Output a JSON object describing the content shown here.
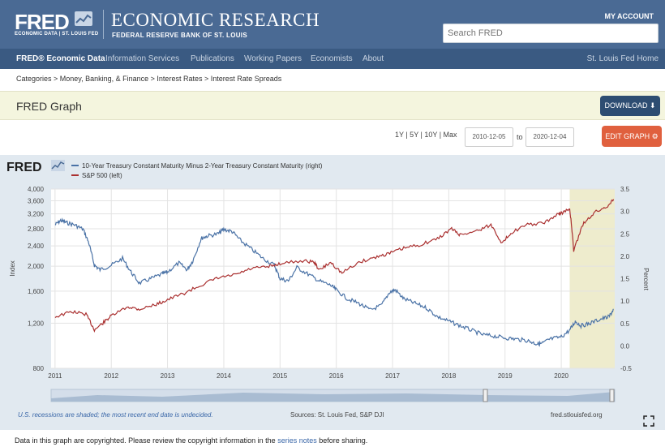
{
  "header": {
    "logo": "FRED",
    "logo_sub": "ECONOMIC DATA | ST. LOUIS FED",
    "title": "ECONOMIC RESEARCH",
    "subtitle": "FEDERAL RESERVE BANK OF ST. LOUIS",
    "my_account": "MY ACCOUNT",
    "search_placeholder": "Search FRED"
  },
  "nav": {
    "items": [
      "FRED® Economic Data",
      "Information Services",
      "Publications",
      "Working Papers",
      "Economists",
      "About"
    ],
    "right": "St. Louis Fed Home"
  },
  "breadcrumb": "Categories > Money, Banking, & Finance > Interest Rates > Interest Rate Spreads",
  "graph_bar": {
    "title": "FRED Graph",
    "download": "DOWNLOAD"
  },
  "controls": {
    "ranges": "1Y | 5Y | 10Y | Max",
    "start": "2010-12-05",
    "to": "to",
    "end": "2020-12-04",
    "edit": "EDIT GRAPH"
  },
  "chart_logo": "FRED",
  "footer": {
    "note": "U.S. recessions are shaded; the most recent end date is undecided.",
    "sources": "Sources: St. Louis Fed, S&P DJI",
    "url": "fred.stlouisfed.org"
  },
  "copyright": {
    "before": "Data in this graph are copyrighted. Please review the copyright information in the",
    "link": "series notes",
    "after": "before sharing."
  },
  "colors": {
    "spread": "#4a72a6",
    "sp500": "#aa3030",
    "recession": "#eeeccd"
  },
  "chart_data": {
    "type": "line",
    "series": [
      {
        "name": "10-Year Treasury Constant Maturity Minus 2-Year Treasury Constant Maturity (right)",
        "axis": "right",
        "x": [
          2011.0,
          2011.1,
          2011.2,
          2011.35,
          2011.5,
          2011.6,
          2011.7,
          2011.8,
          2012.0,
          2012.2,
          2012.35,
          2012.5,
          2012.7,
          2012.9,
          2013.0,
          2013.2,
          2013.35,
          2013.45,
          2013.6,
          2013.7,
          2013.9,
          2014.0,
          2014.15,
          2014.3,
          2014.5,
          2014.7,
          2014.9,
          2015.0,
          2015.15,
          2015.3,
          2015.5,
          2015.7,
          2015.9,
          2016.0,
          2016.2,
          2016.4,
          2016.6,
          2016.8,
          2016.95,
          2017.05,
          2017.2,
          2017.4,
          2017.6,
          2017.8,
          2018.0,
          2018.2,
          2018.4,
          2018.6,
          2018.8,
          2019.0,
          2019.2,
          2019.4,
          2019.55,
          2019.65,
          2019.8,
          2020.0,
          2020.15,
          2020.25,
          2020.35,
          2020.5,
          2020.7,
          2020.85,
          2020.93
        ],
        "values": [
          2.7,
          2.8,
          2.75,
          2.7,
          2.6,
          2.3,
          1.8,
          1.7,
          1.8,
          1.95,
          1.65,
          1.4,
          1.5,
          1.6,
          1.65,
          1.85,
          1.7,
          1.9,
          2.4,
          2.45,
          2.5,
          2.6,
          2.55,
          2.35,
          2.15,
          1.95,
          1.8,
          1.5,
          1.45,
          1.75,
          1.6,
          1.45,
          1.35,
          1.25,
          1.05,
          0.95,
          0.8,
          0.9,
          1.2,
          1.25,
          1.05,
          0.95,
          0.85,
          0.65,
          0.55,
          0.45,
          0.35,
          0.25,
          0.22,
          0.18,
          0.15,
          0.12,
          0.05,
          0.05,
          0.15,
          0.2,
          0.35,
          0.55,
          0.45,
          0.5,
          0.6,
          0.65,
          0.82
        ]
      },
      {
        "name": "S&P 500 (left)",
        "axis": "left",
        "x": [
          2011.0,
          2011.3,
          2011.55,
          2011.7,
          2011.85,
          2012.0,
          2012.3,
          2012.5,
          2012.8,
          2013.0,
          2013.3,
          2013.6,
          2013.9,
          2014.2,
          2014.5,
          2014.8,
          2015.0,
          2015.4,
          2015.6,
          2015.7,
          2015.9,
          2016.1,
          2016.4,
          2016.7,
          2016.95,
          2017.2,
          2017.5,
          2017.8,
          2018.05,
          2018.2,
          2018.5,
          2018.75,
          2018.95,
          2019.1,
          2019.4,
          2019.7,
          2019.95,
          2020.05,
          2020.15,
          2020.22,
          2020.4,
          2020.6,
          2020.8,
          2020.93
        ],
        "values": [
          1270,
          1330,
          1300,
          1130,
          1200,
          1280,
          1390,
          1360,
          1420,
          1480,
          1570,
          1690,
          1800,
          1850,
          1960,
          1990,
          2050,
          2100,
          2080,
          1930,
          2070,
          1880,
          2070,
          2170,
          2250,
          2350,
          2430,
          2560,
          2800,
          2650,
          2750,
          2900,
          2450,
          2700,
          2900,
          2950,
          3200,
          3250,
          3350,
          2300,
          2950,
          3250,
          3400,
          3650
        ]
      }
    ],
    "x_range": [
      2010.93,
      2020.95
    ],
    "x_ticks": [
      "2011",
      "2012",
      "2013",
      "2014",
      "2015",
      "2016",
      "2017",
      "2018",
      "2019",
      "2020"
    ],
    "left_axis": {
      "label": "Index",
      "log_scale": true,
      "range": [
        800,
        4000
      ],
      "ticks": [
        "4,000",
        "3,600",
        "3,200",
        "2,800",
        "2,400",
        "2,000",
        "1,600",
        "1,200",
        "800"
      ]
    },
    "right_axis": {
      "label": "Percent",
      "range": [
        -0.5,
        3.5
      ],
      "ticks": [
        "3.5",
        "3.0",
        "2.5",
        "2.0",
        "1.5",
        "1.0",
        "0.5",
        "0.0",
        "-0.5"
      ]
    },
    "recession_shading": [
      2020.15,
      2020.95
    ]
  }
}
